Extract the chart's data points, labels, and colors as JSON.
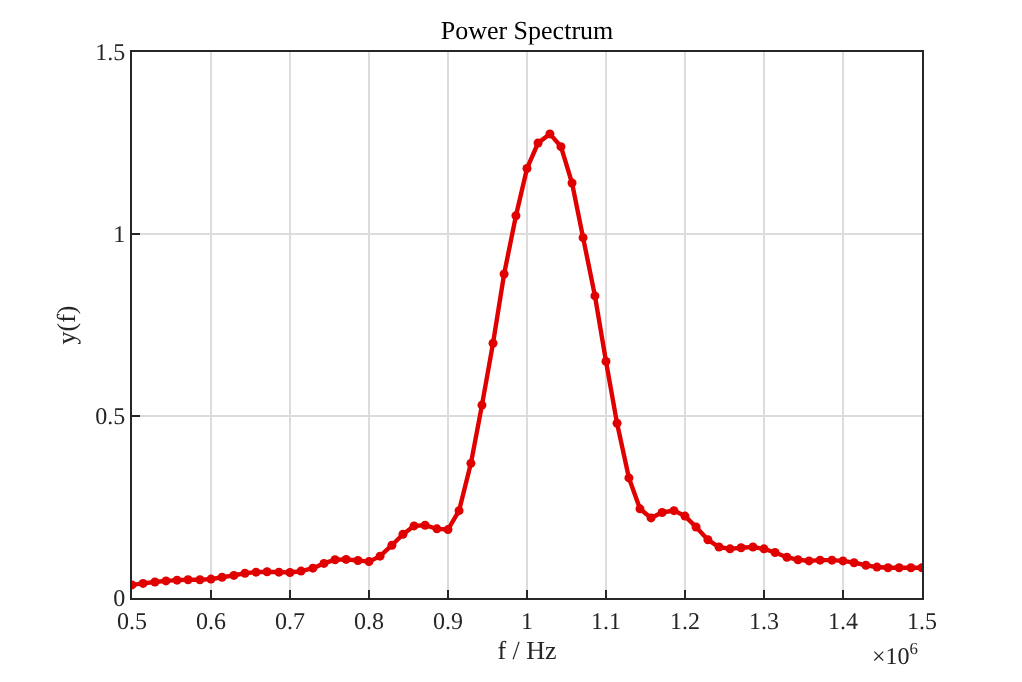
{
  "chart_data": {
    "type": "line",
    "title": "Power Spectrum",
    "xlabel": "f / Hz",
    "ylabel": "y(f)",
    "x": [
      0.5,
      0.514,
      0.529,
      0.543,
      0.557,
      0.571,
      0.586,
      0.6,
      0.614,
      0.629,
      0.643,
      0.657,
      0.671,
      0.686,
      0.7,
      0.714,
      0.729,
      0.743,
      0.757,
      0.771,
      0.786,
      0.8,
      0.814,
      0.829,
      0.843,
      0.857,
      0.871,
      0.886,
      0.9,
      0.914,
      0.929,
      0.943,
      0.957,
      0.971,
      0.986,
      1.0,
      1.014,
      1.029,
      1.043,
      1.057,
      1.071,
      1.086,
      1.1,
      1.114,
      1.129,
      1.143,
      1.157,
      1.171,
      1.186,
      1.2,
      1.214,
      1.229,
      1.243,
      1.257,
      1.271,
      1.286,
      1.3,
      1.314,
      1.329,
      1.343,
      1.357,
      1.371,
      1.386,
      1.4,
      1.414,
      1.429,
      1.443,
      1.457,
      1.471,
      1.486,
      1.5
    ],
    "series": [
      {
        "color": "#e00000",
        "values": [
          0.036,
          0.04,
          0.044,
          0.047,
          0.049,
          0.05,
          0.05,
          0.052,
          0.057,
          0.062,
          0.068,
          0.071,
          0.072,
          0.071,
          0.07,
          0.074,
          0.082,
          0.095,
          0.105,
          0.106,
          0.103,
          0.1,
          0.115,
          0.145,
          0.175,
          0.198,
          0.2,
          0.19,
          0.188,
          0.24,
          0.37,
          0.53,
          0.7,
          0.89,
          1.05,
          1.18,
          1.25,
          1.275,
          1.24,
          1.14,
          0.99,
          0.83,
          0.65,
          0.48,
          0.33,
          0.245,
          0.22,
          0.235,
          0.24,
          0.225,
          0.195,
          0.16,
          0.14,
          0.135,
          0.138,
          0.14,
          0.135,
          0.125,
          0.112,
          0.105,
          0.102,
          0.104,
          0.104,
          0.102,
          0.097,
          0.09,
          0.085,
          0.083,
          0.083,
          0.083,
          0.083
        ]
      }
    ],
    "annotations": [
      "×10$^{6}$"
    ],
    "xlim": [
      0.5,
      1.5
    ],
    "xticks": [
      0.5,
      0.6,
      0.7,
      0.8,
      0.9,
      1,
      1.1,
      1.2,
      1.3,
      1.4,
      1.5
    ],
    "ylim": [
      0,
      1.5
    ],
    "yticks": [
      0,
      0.5,
      1,
      1.5
    ],
    "grid": true,
    "marker": "circle",
    "line_style": "solid"
  }
}
